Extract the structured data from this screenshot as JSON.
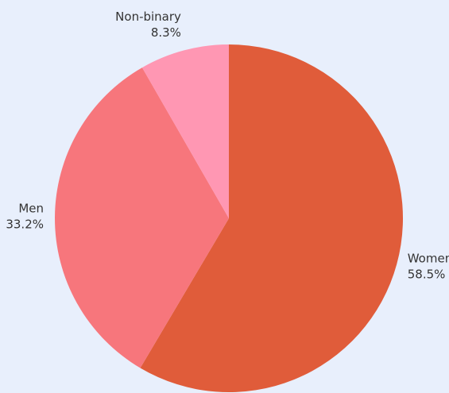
{
  "chart_data": {
    "type": "pie",
    "title": "",
    "start_angle": "12 o'clock",
    "direction": "clockwise",
    "slices": [
      {
        "name": "Women",
        "value": 58.5,
        "value_label": "58.5%",
        "color": "#e05c3a"
      },
      {
        "name": "Men",
        "value": 33.2,
        "value_label": "33.2%",
        "color": "#f7767c"
      },
      {
        "name": "Non-binary",
        "value": 8.3,
        "value_label": "8.3%",
        "color": "#ff97b3"
      }
    ]
  },
  "background_color": "#e8effc"
}
